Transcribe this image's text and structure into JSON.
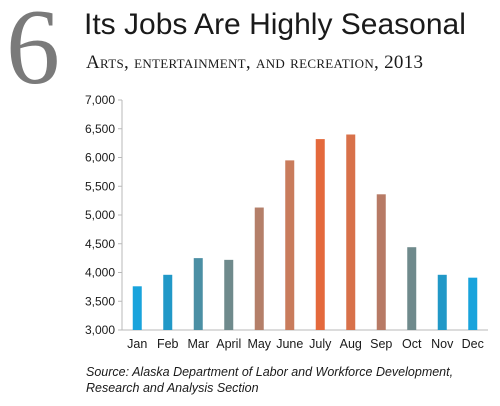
{
  "header": {
    "number": "6",
    "title": "Its Jobs Are Highly Seasonal",
    "subtitle": "Arts, entertainment, and recreation, 2013"
  },
  "source": {
    "line1": "Source: Alaska Department of Labor and Workforce Development,",
    "line2": "Research and Analysis Section"
  },
  "chart_data": {
    "type": "bar",
    "title": "",
    "xlabel": "",
    "ylabel": "",
    "categories": [
      "Jan",
      "Feb",
      "Mar",
      "April",
      "May",
      "June",
      "July",
      "Aug",
      "Sep",
      "Oct",
      "Nov",
      "Dec"
    ],
    "values": [
      3760,
      3960,
      4250,
      4220,
      5130,
      5950,
      6320,
      6400,
      5360,
      4440,
      3960,
      3910
    ],
    "bar_colors": [
      "#18a3dc",
      "#2198c7",
      "#4b8fa4",
      "#6f8a8c",
      "#b47f69",
      "#c97c5c",
      "#e4693c",
      "#d8714a",
      "#b77a65",
      "#6f8a8c",
      "#2198c7",
      "#18a3dc"
    ],
    "ylim": [
      3000,
      7000
    ],
    "yticks": [
      3000,
      3500,
      4000,
      4500,
      5000,
      5500,
      6000,
      6500,
      7000
    ],
    "ytick_labels": [
      "3,000",
      "3,500",
      "4,000",
      "4,500",
      "5,000",
      "5,500",
      "6,000",
      "6,500",
      "7,000"
    ],
    "grid": false,
    "legend": "none"
  }
}
